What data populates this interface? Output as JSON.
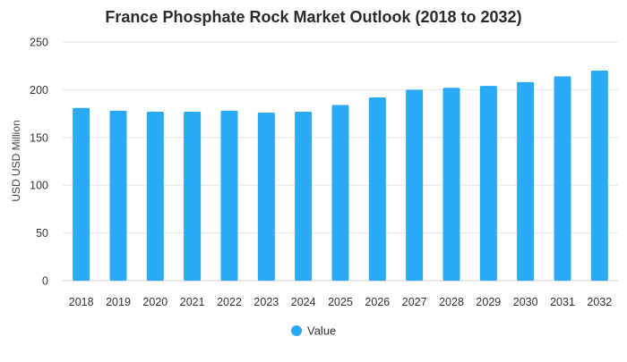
{
  "chart_data": {
    "type": "bar",
    "title": "France Phosphate Rock Market Outlook (2018 to 2032)",
    "xlabel": "",
    "ylabel": "USD USD Million",
    "ylim": [
      0,
      250
    ],
    "yticks": [
      0,
      50,
      100,
      150,
      200,
      250
    ],
    "grid": true,
    "legend_position": "bottom",
    "categories": [
      "2018",
      "2019",
      "2020",
      "2021",
      "2022",
      "2023",
      "2024",
      "2025",
      "2026",
      "2027",
      "2028",
      "2029",
      "2030",
      "2031",
      "2032"
    ],
    "series": [
      {
        "name": "Value",
        "color": "#2aa9f5",
        "values": [
          181,
          178,
          177,
          177,
          178,
          176,
          177,
          184,
          192,
          200,
          202,
          204,
          208,
          214,
          220
        ]
      }
    ]
  }
}
